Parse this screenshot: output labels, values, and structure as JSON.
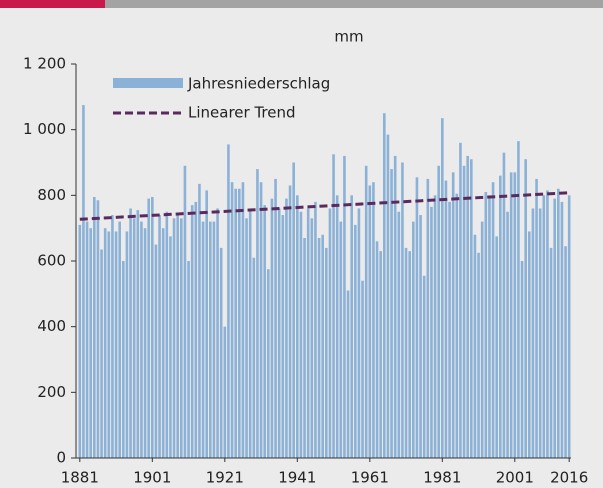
{
  "chart_data": {
    "type": "bar",
    "y_label": "mm",
    "x": [
      1881,
      1882,
      1883,
      1884,
      1885,
      1886,
      1887,
      1888,
      1889,
      1890,
      1891,
      1892,
      1893,
      1894,
      1895,
      1896,
      1897,
      1898,
      1899,
      1900,
      1901,
      1902,
      1903,
      1904,
      1905,
      1906,
      1907,
      1908,
      1909,
      1910,
      1911,
      1912,
      1913,
      1914,
      1915,
      1916,
      1917,
      1918,
      1919,
      1920,
      1921,
      1922,
      1923,
      1924,
      1925,
      1926,
      1927,
      1928,
      1929,
      1930,
      1931,
      1932,
      1933,
      1934,
      1935,
      1936,
      1937,
      1938,
      1939,
      1940,
      1941,
      1942,
      1943,
      1944,
      1945,
      1946,
      1947,
      1948,
      1949,
      1950,
      1951,
      1952,
      1953,
      1954,
      1955,
      1956,
      1957,
      1958,
      1959,
      1960,
      1961,
      1962,
      1963,
      1964,
      1965,
      1966,
      1967,
      1968,
      1969,
      1970,
      1971,
      1972,
      1973,
      1974,
      1975,
      1976,
      1977,
      1978,
      1979,
      1980,
      1981,
      1982,
      1983,
      1984,
      1985,
      1986,
      1987,
      1988,
      1989,
      1990,
      1991,
      1992,
      1993,
      1994,
      1995,
      1996,
      1997,
      1998,
      1999,
      2000,
      2001,
      2002,
      2003,
      2004,
      2005,
      2006,
      2007,
      2008,
      2009,
      2010,
      2011,
      2012,
      2013,
      2014,
      2015,
      2016
    ],
    "series": [
      {
        "name": "Jahresniederschlag",
        "color": "#8bb2d6",
        "values": [
          710,
          1075,
          720,
          700,
          795,
          785,
          635,
          700,
          690,
          740,
          690,
          720,
          600,
          690,
          760,
          730,
          755,
          720,
          700,
          790,
          795,
          650,
          740,
          700,
          750,
          675,
          730,
          740,
          730,
          890,
          600,
          770,
          780,
          835,
          720,
          815,
          720,
          720,
          760,
          640,
          400,
          955,
          840,
          820,
          820,
          840,
          730,
          760,
          610,
          880,
          840,
          770,
          575,
          790,
          850,
          760,
          740,
          790,
          830,
          900,
          800,
          750,
          670,
          760,
          730,
          780,
          670,
          680,
          640,
          760,
          925,
          800,
          720,
          920,
          510,
          800,
          710,
          760,
          540,
          890,
          830,
          840,
          660,
          630,
          1050,
          985,
          880,
          920,
          750,
          900,
          640,
          630,
          720,
          855,
          740,
          555,
          850,
          765,
          800,
          890,
          1035,
          845,
          780,
          870,
          805,
          960,
          890,
          920,
          910,
          680,
          625,
          720,
          810,
          800,
          840,
          675,
          860,
          930,
          750,
          870,
          870,
          965,
          600,
          910,
          690,
          760,
          850,
          760,
          800,
          815,
          640,
          790,
          820,
          780,
          645,
          800
        ]
      },
      {
        "name": "Linearer Trend",
        "type": "line",
        "color": "#5a2a5f",
        "dashed": true,
        "x": [
          1881,
          2016
        ],
        "values": [
          727,
          808
        ]
      }
    ],
    "xlim": [
      1880.5,
      2016.5
    ],
    "xticks": [
      1881,
      1901,
      1921,
      1941,
      1961,
      1981,
      2001,
      2016
    ],
    "ylim": [
      0,
      1200
    ],
    "yticks": [
      0,
      200,
      400,
      600,
      800,
      {
        "value": 1000,
        "label": "1 000"
      },
      {
        "value": 1200,
        "label": "1 200"
      }
    ],
    "legend": "upper left"
  }
}
